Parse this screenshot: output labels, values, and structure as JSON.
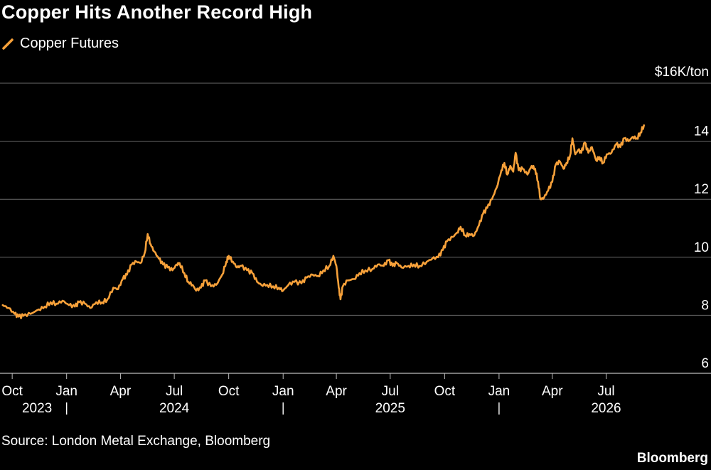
{
  "title": "Copper Hits Another Record High",
  "legend": {
    "label": "Copper Futures",
    "color": "#f7a13a"
  },
  "source": "Source: London Metal Exchange, Bloomberg",
  "brand": "Bloomberg",
  "chart_data": {
    "type": "line",
    "title": "Copper Hits Another Record High",
    "ylabel": "$16K/ton",
    "ylim": [
      6,
      16
    ],
    "yticks": [
      6,
      8,
      10,
      12,
      14,
      16
    ],
    "ytick_labels": [
      "6",
      "8",
      "10",
      "12",
      "14",
      "$16K/ton"
    ],
    "xlim": [
      "2023-09-14",
      "2026-10-31"
    ],
    "x_month_ticks": [
      {
        "date": "2023-10-01",
        "label": "Oct"
      },
      {
        "date": "2024-01-01",
        "label": "Jan"
      },
      {
        "date": "2024-04-01",
        "label": "Apr"
      },
      {
        "date": "2024-07-01",
        "label": "Jul"
      },
      {
        "date": "2024-10-01",
        "label": "Oct"
      },
      {
        "date": "2025-01-01",
        "label": "Jan"
      },
      {
        "date": "2025-04-01",
        "label": "Apr"
      },
      {
        "date": "2025-07-01",
        "label": "Jul"
      },
      {
        "date": "2025-10-01",
        "label": "Oct"
      },
      {
        "date": "2026-01-01",
        "label": "Jan"
      },
      {
        "date": "2026-04-01",
        "label": "Apr"
      },
      {
        "date": "2026-07-01",
        "label": "Jul"
      }
    ],
    "x_year_labels": [
      {
        "date": "2023-11-12",
        "label": "2023"
      },
      {
        "date": "2024-07-01",
        "label": "2024"
      },
      {
        "date": "2025-07-01",
        "label": "2025"
      },
      {
        "date": "2026-07-01",
        "label": "2026"
      }
    ],
    "x_year_dividers": [
      "2024-01-01",
      "2025-01-01",
      "2026-01-01"
    ],
    "grid": true,
    "legend_position": "top-left",
    "series": [
      {
        "name": "Copper Futures",
        "color": "#f7a13a",
        "points": [
          [
            "2023-09-15",
            8.35
          ],
          [
            "2023-09-25",
            8.25
          ],
          [
            "2023-10-05",
            8.05
          ],
          [
            "2023-10-12",
            7.95
          ],
          [
            "2023-10-20",
            7.98
          ],
          [
            "2023-11-01",
            8.05
          ],
          [
            "2023-11-15",
            8.2
          ],
          [
            "2023-11-25",
            8.3
          ],
          [
            "2023-12-05",
            8.45
          ],
          [
            "2023-12-15",
            8.4
          ],
          [
            "2023-12-25",
            8.5
          ],
          [
            "2024-01-05",
            8.35
          ],
          [
            "2024-01-15",
            8.3
          ],
          [
            "2024-01-22",
            8.45
          ],
          [
            "2024-02-01",
            8.4
          ],
          [
            "2024-02-10",
            8.25
          ],
          [
            "2024-02-20",
            8.45
          ],
          [
            "2024-03-01",
            8.45
          ],
          [
            "2024-03-10",
            8.55
          ],
          [
            "2024-03-20",
            8.95
          ],
          [
            "2024-03-28",
            8.9
          ],
          [
            "2024-04-05",
            9.25
          ],
          [
            "2024-04-12",
            9.4
          ],
          [
            "2024-04-20",
            9.75
          ],
          [
            "2024-04-28",
            9.85
          ],
          [
            "2024-05-05",
            9.8
          ],
          [
            "2024-05-12",
            10.15
          ],
          [
            "2024-05-17",
            10.8
          ],
          [
            "2024-05-22",
            10.45
          ],
          [
            "2024-05-28",
            10.2
          ],
          [
            "2024-06-05",
            9.95
          ],
          [
            "2024-06-12",
            9.75
          ],
          [
            "2024-06-20",
            9.65
          ],
          [
            "2024-06-28",
            9.55
          ],
          [
            "2024-07-05",
            9.75
          ],
          [
            "2024-07-10",
            9.8
          ],
          [
            "2024-07-18",
            9.45
          ],
          [
            "2024-07-25",
            9.15
          ],
          [
            "2024-08-01",
            9.05
          ],
          [
            "2024-08-07",
            8.85
          ],
          [
            "2024-08-15",
            8.95
          ],
          [
            "2024-08-22",
            9.2
          ],
          [
            "2024-09-01",
            9.0
          ],
          [
            "2024-09-10",
            9.05
          ],
          [
            "2024-09-20",
            9.4
          ],
          [
            "2024-09-27",
            9.85
          ],
          [
            "2024-10-01",
            10.05
          ],
          [
            "2024-10-08",
            9.85
          ],
          [
            "2024-10-15",
            9.65
          ],
          [
            "2024-10-22",
            9.7
          ],
          [
            "2024-11-01",
            9.55
          ],
          [
            "2024-11-10",
            9.45
          ],
          [
            "2024-11-18",
            9.15
          ],
          [
            "2024-11-25",
            9.05
          ],
          [
            "2024-12-05",
            9.05
          ],
          [
            "2024-12-15",
            9.0
          ],
          [
            "2024-12-25",
            8.95
          ],
          [
            "2025-01-01",
            8.85
          ],
          [
            "2025-01-10",
            9.05
          ],
          [
            "2025-01-20",
            9.15
          ],
          [
            "2025-02-01",
            9.1
          ],
          [
            "2025-02-10",
            9.3
          ],
          [
            "2025-02-20",
            9.4
          ],
          [
            "2025-03-01",
            9.35
          ],
          [
            "2025-03-10",
            9.55
          ],
          [
            "2025-03-20",
            9.7
          ],
          [
            "2025-03-27",
            10.05
          ],
          [
            "2025-04-01",
            9.7
          ],
          [
            "2025-04-05",
            8.95
          ],
          [
            "2025-04-08",
            8.55
          ],
          [
            "2025-04-12",
            9.0
          ],
          [
            "2025-04-20",
            9.2
          ],
          [
            "2025-05-01",
            9.25
          ],
          [
            "2025-05-10",
            9.45
          ],
          [
            "2025-05-20",
            9.55
          ],
          [
            "2025-06-01",
            9.6
          ],
          [
            "2025-06-10",
            9.75
          ],
          [
            "2025-06-20",
            9.7
          ],
          [
            "2025-06-28",
            9.9
          ],
          [
            "2025-07-05",
            9.7
          ],
          [
            "2025-07-12",
            9.8
          ],
          [
            "2025-07-20",
            9.65
          ],
          [
            "2025-08-01",
            9.7
          ],
          [
            "2025-08-10",
            9.75
          ],
          [
            "2025-08-20",
            9.7
          ],
          [
            "2025-09-01",
            9.85
          ],
          [
            "2025-09-10",
            9.95
          ],
          [
            "2025-09-20",
            10.0
          ],
          [
            "2025-09-28",
            10.25
          ],
          [
            "2025-10-05",
            10.55
          ],
          [
            "2025-10-15",
            10.7
          ],
          [
            "2025-10-22",
            10.85
          ],
          [
            "2025-10-28",
            11.05
          ],
          [
            "2025-11-05",
            10.75
          ],
          [
            "2025-11-12",
            10.8
          ],
          [
            "2025-11-20",
            10.75
          ],
          [
            "2025-11-28",
            11.1
          ],
          [
            "2025-12-05",
            11.5
          ],
          [
            "2025-12-12",
            11.7
          ],
          [
            "2025-12-20",
            12.0
          ],
          [
            "2025-12-28",
            12.4
          ],
          [
            "2026-01-05",
            13.0
          ],
          [
            "2026-01-10",
            13.25
          ],
          [
            "2026-01-15",
            12.85
          ],
          [
            "2026-01-20",
            13.15
          ],
          [
            "2026-01-25",
            12.95
          ],
          [
            "2026-01-29",
            13.6
          ],
          [
            "2026-02-03",
            13.0
          ],
          [
            "2026-02-10",
            13.05
          ],
          [
            "2026-02-18",
            12.85
          ],
          [
            "2026-02-25",
            13.15
          ],
          [
            "2026-03-03",
            13.05
          ],
          [
            "2026-03-08",
            12.6
          ],
          [
            "2026-03-12",
            12.0
          ],
          [
            "2026-03-18",
            12.05
          ],
          [
            "2026-03-25",
            12.3
          ],
          [
            "2026-04-01",
            12.6
          ],
          [
            "2026-04-07",
            13.2
          ],
          [
            "2026-04-14",
            13.3
          ],
          [
            "2026-04-20",
            13.05
          ],
          [
            "2026-04-25",
            13.25
          ],
          [
            "2026-05-01",
            13.5
          ],
          [
            "2026-05-05",
            14.1
          ],
          [
            "2026-05-10",
            13.55
          ],
          [
            "2026-05-15",
            13.7
          ],
          [
            "2026-05-20",
            13.6
          ],
          [
            "2026-05-26",
            13.95
          ],
          [
            "2026-06-01",
            13.6
          ],
          [
            "2026-06-07",
            13.8
          ],
          [
            "2026-06-14",
            13.35
          ],
          [
            "2026-06-20",
            13.45
          ],
          [
            "2026-06-26",
            13.25
          ],
          [
            "2026-07-02",
            13.55
          ],
          [
            "2026-07-10",
            13.6
          ],
          [
            "2026-07-18",
            13.9
          ],
          [
            "2026-07-25",
            13.8
          ],
          [
            "2026-08-01",
            14.1
          ],
          [
            "2026-08-08",
            14.0
          ],
          [
            "2026-08-15",
            14.15
          ],
          [
            "2026-08-22",
            14.1
          ],
          [
            "2026-08-28",
            14.3
          ],
          [
            "2026-09-03",
            14.55
          ]
        ]
      }
    ]
  }
}
